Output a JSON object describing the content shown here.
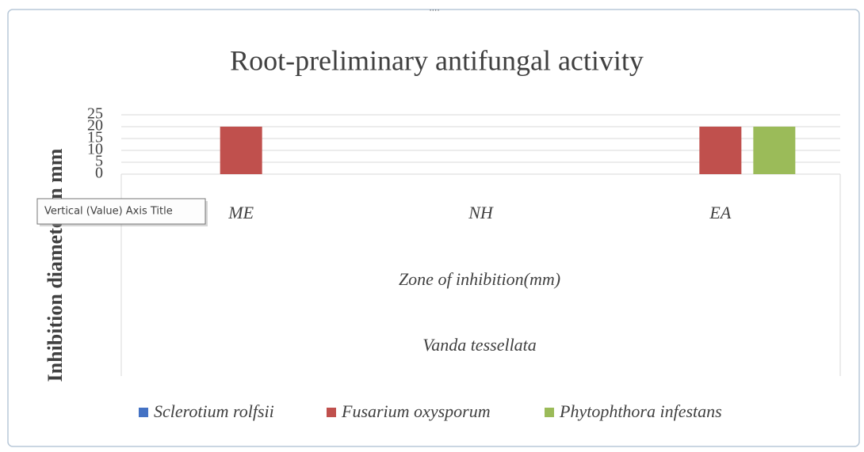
{
  "chart_data": {
    "type": "bar",
    "title": "Root-preliminary antifungal activity",
    "y_label": "Inhibition diameter in mm",
    "categories": [
      "ME",
      "NH",
      "EA"
    ],
    "x_label": "Zone of inhibition(mm)",
    "x_group_label": "Vanda tessellata",
    "series": [
      {
        "name": "Sclerotium rolfsii",
        "color": "#4472c4",
        "values": [
          0,
          0,
          0
        ]
      },
      {
        "name": "Fusarium oxysporum",
        "color": "#c0504d",
        "values": [
          20,
          0,
          20
        ]
      },
      {
        "name": "Phytophthora infestans",
        "color": "#9bbb59",
        "values": [
          0,
          0,
          20
        ]
      }
    ],
    "ylim": [
      0,
      25
    ],
    "yticks": [
      0,
      5,
      10,
      15,
      20,
      25
    ],
    "grid": true,
    "legend": "bottom"
  },
  "tooltip": "Vertical (Value) Axis Title"
}
